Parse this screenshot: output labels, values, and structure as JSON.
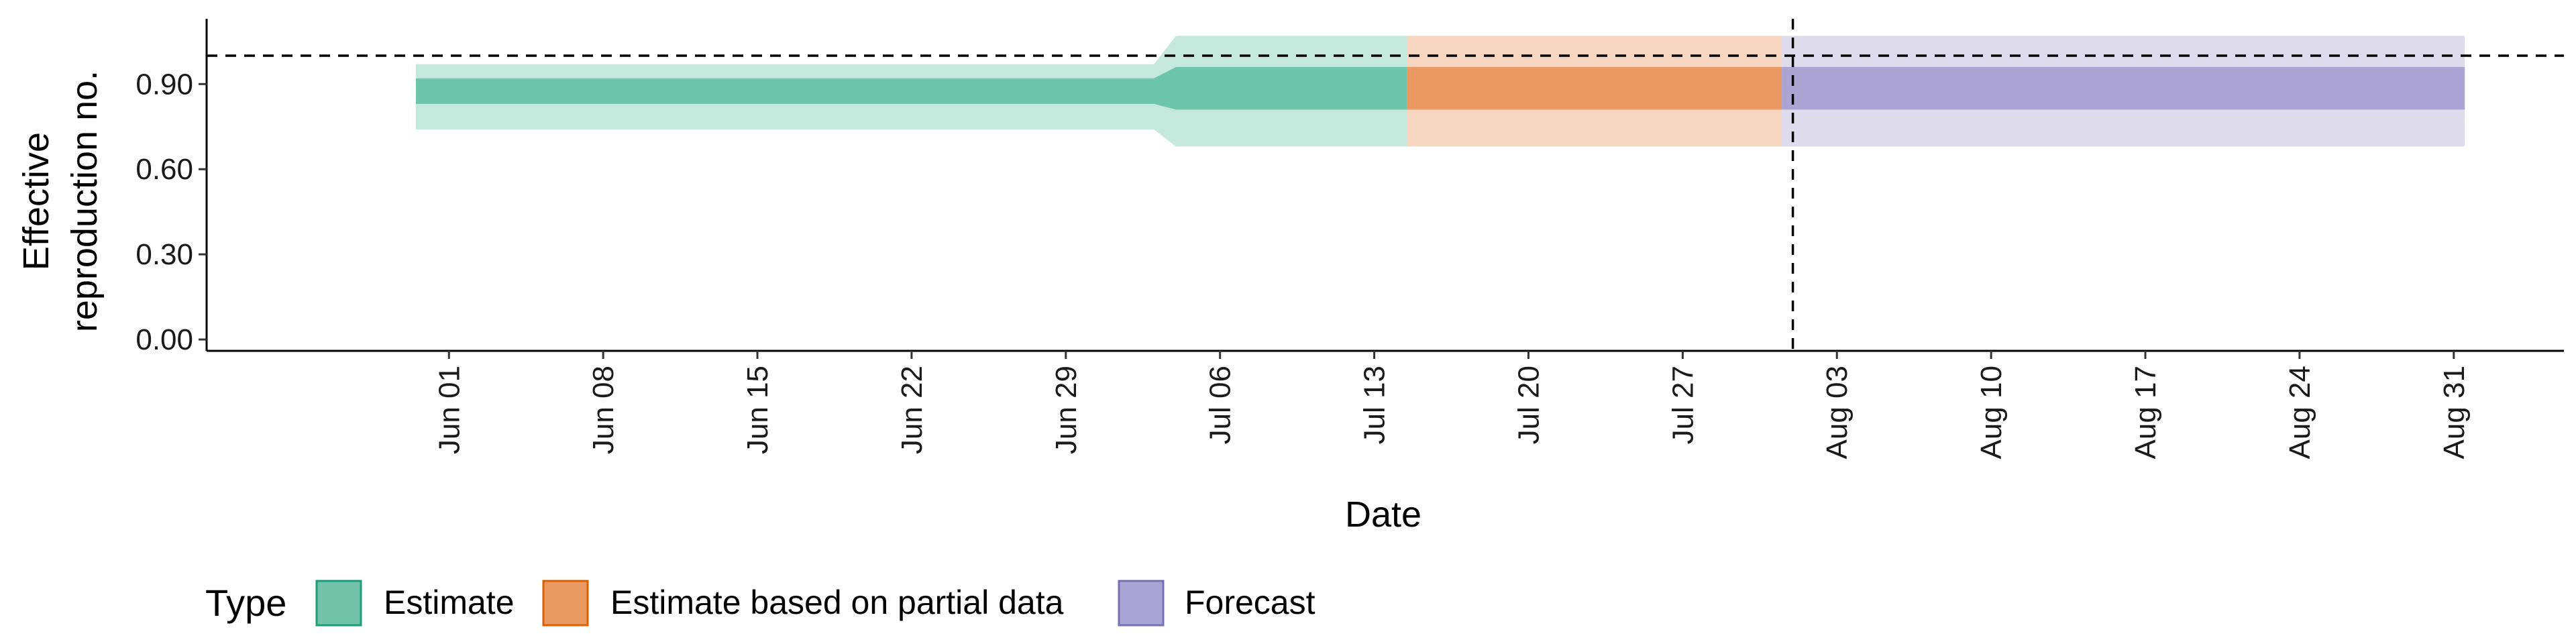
{
  "chart_data": {
    "type": "area",
    "xlabel": "Date",
    "ylabel_lines": [
      "Effective",
      "reproduction no."
    ],
    "ylim": [
      -0.04,
      1.13
    ],
    "y_ticks": [
      0.0,
      0.3,
      0.6,
      0.9
    ],
    "y_tick_labels": [
      "0.00",
      "0.30",
      "0.60",
      "0.90"
    ],
    "x_range": [
      "2020-05-21",
      "2020-09-05"
    ],
    "x_ticks": [
      "2020-06-01",
      "2020-06-08",
      "2020-06-15",
      "2020-06-22",
      "2020-06-29",
      "2020-07-06",
      "2020-07-13",
      "2020-07-20",
      "2020-07-27",
      "2020-08-03",
      "2020-08-10",
      "2020-08-17",
      "2020-08-24",
      "2020-08-31"
    ],
    "x_tick_labels": [
      "Jun 01",
      "Jun 08",
      "Jun 15",
      "Jun 22",
      "Jun 29",
      "Jul 06",
      "Jul 13",
      "Jul 20",
      "Jul 27",
      "Aug 03",
      "Aug 10",
      "Aug 17",
      "Aug 24",
      "Aug 31"
    ],
    "reference_line_y": 1.0,
    "reference_line_date": "2020-08-01",
    "series": [
      {
        "name": "Estimate",
        "color": "#66C2A5",
        "points": [
          {
            "date": "2020-05-31",
            "lower_90": 0.74,
            "upper_90": 0.97,
            "lower_50": 0.83,
            "upper_50": 0.92
          },
          {
            "date": "2020-07-03",
            "lower_90": 0.74,
            "upper_90": 0.97,
            "lower_50": 0.83,
            "upper_50": 0.92
          },
          {
            "date": "2020-07-04",
            "lower_90": 0.68,
            "upper_90": 1.07,
            "lower_50": 0.81,
            "upper_50": 0.96
          },
          {
            "date": "2020-07-14",
            "lower_90": 0.68,
            "upper_90": 1.07,
            "lower_50": 0.81,
            "upper_50": 0.96
          }
        ]
      },
      {
        "name": "Estimate based on partial data",
        "color": "#E8935A",
        "points": [
          {
            "date": "2020-07-15",
            "lower_90": 0.68,
            "upper_90": 1.07,
            "lower_50": 0.81,
            "upper_50": 0.96
          },
          {
            "date": "2020-07-31",
            "lower_90": 0.68,
            "upper_90": 1.07,
            "lower_50": 0.81,
            "upper_50": 0.96
          }
        ]
      },
      {
        "name": "Forecast",
        "color": "#A7A1D0",
        "points": [
          {
            "date": "2020-08-01",
            "lower_90": 0.68,
            "upper_90": 1.07,
            "lower_50": 0.81,
            "upper_50": 0.96
          },
          {
            "date": "2020-08-31",
            "lower_90": 0.68,
            "upper_90": 1.07,
            "lower_50": 0.81,
            "upper_50": 0.96
          }
        ]
      }
    ],
    "legend": {
      "position": "bottom-left",
      "title": "Type",
      "items": [
        {
          "label": "Estimate",
          "fill": "#72C3A7",
          "stroke": "#1B9E77"
        },
        {
          "label": "Estimate based on partial data",
          "fill": "#E99A62",
          "stroke": "#D95F02"
        },
        {
          "label": "Forecast",
          "fill": "#A8A4D3",
          "stroke": "#7570B3"
        }
      ]
    },
    "grid": false
  }
}
